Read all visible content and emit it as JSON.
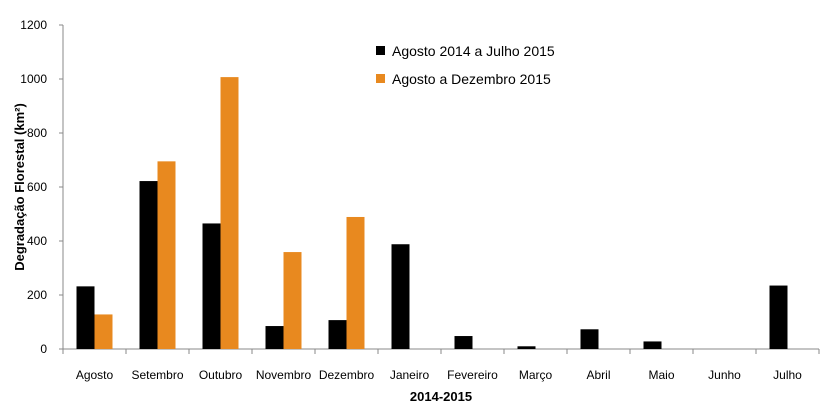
{
  "chart_data": {
    "type": "bar",
    "title": "",
    "xlabel": "2014-2015",
    "ylabel": "Degradação Florestal (km²)",
    "ylim": [
      0,
      1200
    ],
    "yticks": [
      0,
      200,
      400,
      600,
      800,
      1000,
      1200
    ],
    "categories": [
      "Agosto",
      "Setembro",
      "Outubro",
      "Novembro",
      "Dezembro",
      "Janeiro",
      "Fevereiro",
      "Março",
      "Abril",
      "Maio",
      "Junho",
      "Julho"
    ],
    "series": [
      {
        "name": "Agosto 2014 a Julho 2015",
        "color": "#000000",
        "values": [
          232,
          622,
          465,
          85,
          107,
          388,
          48,
          10,
          73,
          28,
          0,
          235
        ]
      },
      {
        "name": "Agosto a Dezembro 2015",
        "color": "#e8891f",
        "values": [
          128,
          695,
          1007,
          359,
          489,
          null,
          null,
          null,
          null,
          null,
          null,
          null
        ]
      }
    ],
    "legend_position": "top-center",
    "grid": false
  }
}
